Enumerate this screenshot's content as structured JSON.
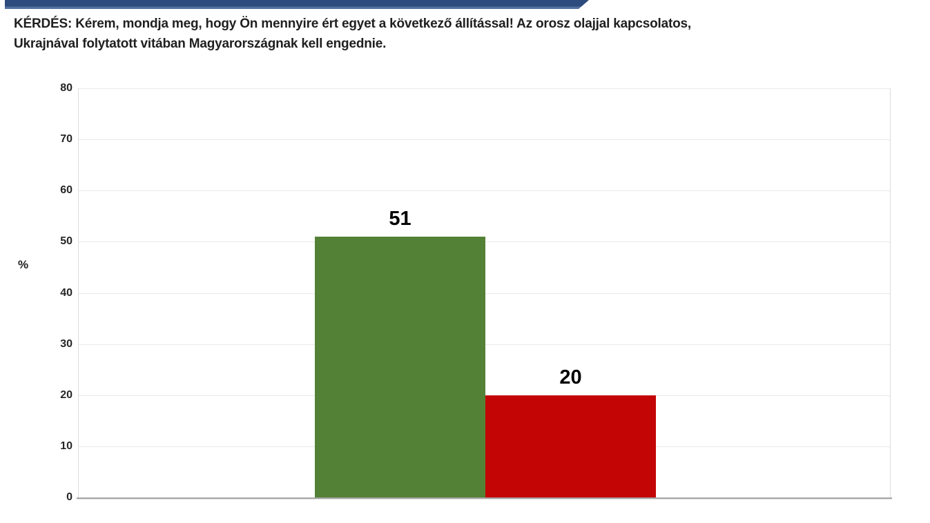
{
  "header": {
    "accent_bar_color": "#2d4b7c",
    "accent_bar_edge_color": "#52719e"
  },
  "question": {
    "line1": "KÉRDÉS: Kérem, mondja meg, hogy Ön mennyire ért egyet a következő állítással! Az orosz olajjal kapcsolatos,",
    "line2": "Ukrajnával folytatott vitában Magyarországnak kell engednie."
  },
  "chart_data": {
    "type": "bar",
    "title": "",
    "categories": [
      "",
      ""
    ],
    "values": [
      51,
      20
    ],
    "bar_colors": [
      "#538135",
      "#c30505"
    ],
    "data_labels": [
      "51",
      "20"
    ],
    "xlabel": "",
    "ylabel": "%",
    "ylim": [
      0,
      80
    ],
    "ytick_step": 10,
    "ytick_labels": [
      "0",
      "10",
      "20",
      "30",
      "40",
      "50",
      "60",
      "70",
      "80"
    ],
    "grid": true,
    "legend_position": "none"
  }
}
